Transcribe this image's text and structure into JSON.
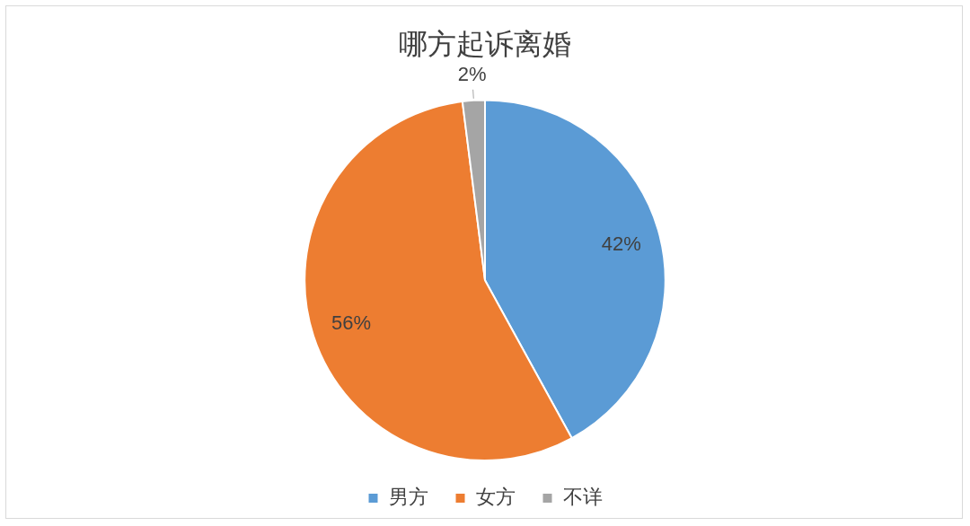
{
  "chart_data": {
    "type": "pie",
    "title": "哪方起诉离婚",
    "categories": [
      "男方",
      "女方",
      "不详"
    ],
    "values": [
      42,
      56,
      2
    ],
    "colors": [
      "#5b9bd5",
      "#ed7d31",
      "#a5a5a5"
    ],
    "value_labels": [
      "42%",
      "56%",
      "2%"
    ],
    "legend": "bottom"
  }
}
